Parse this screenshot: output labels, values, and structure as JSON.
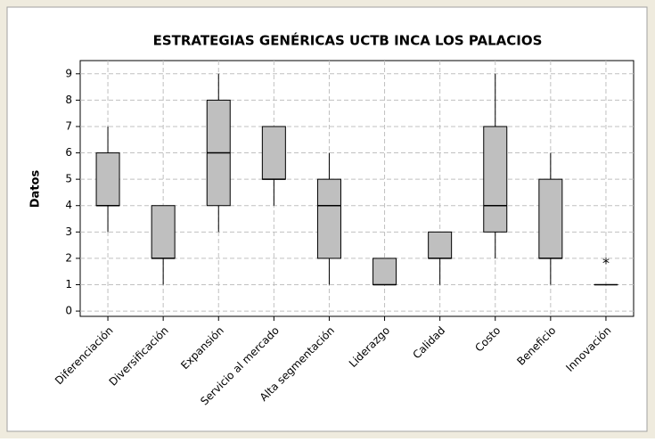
{
  "chart_data": {
    "type": "box",
    "title": "ESTRATEGIAS GENÉRICAS UCTB INCA LOS PALACIOS",
    "y_label": "Datos",
    "categories": [
      "Diferenciación",
      "Diversificación",
      "Expansión",
      "Servicio al mercado",
      "Alta segmentación",
      "Liderazgo",
      "Calidad",
      "Costo",
      "Beneficio",
      "Innovación"
    ],
    "boxes": [
      {
        "min": 3,
        "q1": 4,
        "median": 4,
        "q3": 6,
        "max": 7
      },
      {
        "min": 1,
        "q1": 2,
        "median": 2,
        "q3": 4,
        "max": 4
      },
      {
        "min": 3,
        "q1": 4,
        "median": 6,
        "q3": 8,
        "max": 9
      },
      {
        "min": 4,
        "q1": 5,
        "median": 5,
        "q3": 7,
        "max": 7
      },
      {
        "min": 1,
        "q1": 2,
        "median": 4,
        "q3": 5,
        "max": 6
      },
      {
        "min": 1,
        "q1": 1,
        "median": 1,
        "q3": 2,
        "max": 2
      },
      {
        "min": 1,
        "q1": 2,
        "median": 2,
        "q3": 3,
        "max": 3
      },
      {
        "min": 2,
        "q1": 3,
        "median": 4,
        "q3": 7,
        "max": 9
      },
      {
        "min": 1,
        "q1": 2,
        "median": 2,
        "q3": 5,
        "max": 6
      },
      {
        "min": 1,
        "q1": 1,
        "median": 1,
        "q3": 1,
        "max": 1,
        "outliers": [
          2
        ]
      }
    ],
    "color": "#bfbfbf",
    "ylim": [
      -0.2,
      9.5
    ],
    "yticks": [
      0,
      1,
      2,
      3,
      4,
      5,
      6,
      7,
      8,
      9
    ],
    "grid": true
  }
}
